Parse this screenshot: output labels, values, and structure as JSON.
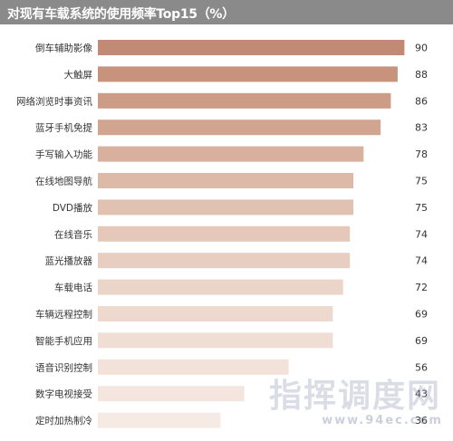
{
  "chart_data": {
    "type": "bar",
    "orientation": "horizontal",
    "title": "对现有车载系统的使用频率Top15（%）",
    "categories": [
      "倒车辅助影像",
      "大触屏",
      "网络浏览时事资讯",
      "蓝牙手机免提",
      "手写输入功能",
      "在线地图导航",
      "DVD播放",
      "在线音乐",
      "蓝光播放器",
      "车载电话",
      "车辆远程控制",
      "智能手机应用",
      "语音识别控制",
      "数字电视接受",
      "定时加热制冷"
    ],
    "values": [
      90,
      88,
      86,
      83,
      78,
      75,
      75,
      74,
      74,
      72,
      69,
      69,
      56,
      43,
      36
    ],
    "colors": [
      "#c08a74",
      "#c7937d",
      "#cc9c87",
      "#d2a590",
      "#d8b09d",
      "#ddbaa8",
      "#e1c1b1",
      "#e5c8ba",
      "#e8cec1",
      "#ebd4c8",
      "#eed9ce",
      "#f0ddd4",
      "#f2e2d9",
      "#f4e6df",
      "#f6eae4"
    ],
    "xlim": [
      0,
      100
    ],
    "grid": false,
    "legend": "none"
  },
  "watermark": {
    "text": "指挥调度网",
    "url": "www.94ec.com"
  }
}
